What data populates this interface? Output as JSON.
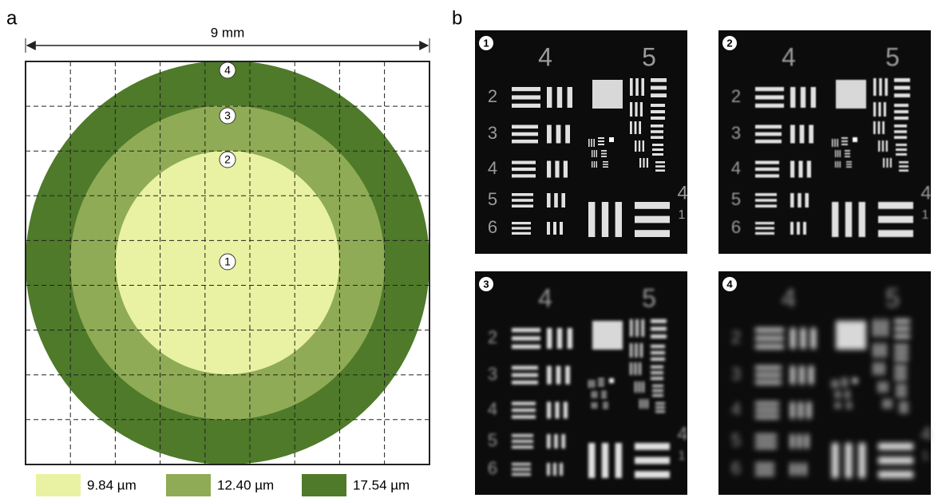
{
  "panel_a": {
    "label": "a",
    "width_label": "9 mm",
    "zone_markers": [
      "1",
      "2",
      "3",
      "4"
    ]
  },
  "legend": [
    {
      "label": "9.84 µm",
      "color": "#e8f2a2"
    },
    {
      "label": "12.40 µm",
      "color": "#8fab55"
    },
    {
      "label": "17.54 µm",
      "color": "#4e7a2a"
    }
  ],
  "panel_b": {
    "label": "b",
    "image_markers": [
      "1",
      "2",
      "3",
      "4"
    ],
    "target_labels": {
      "group_left": "4",
      "group_right": "5",
      "rows": [
        "2",
        "3",
        "4",
        "5",
        "6"
      ],
      "side_group": "4",
      "side_element": "1"
    }
  }
}
